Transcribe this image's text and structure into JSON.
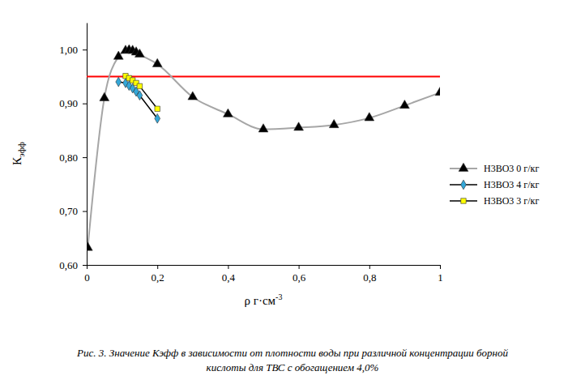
{
  "chart_data": {
    "type": "line",
    "xlabel": [
      "ρ г·см",
      "-3"
    ],
    "ylabel": [
      "К",
      "эфф"
    ],
    "caption": [
      "Рис. 3. Значение Кэфф в зависимости от плотности воды при различной концентрации борной",
      "кислоты для ТВС с обогащением 4,0%"
    ],
    "xlim": [
      0,
      1
    ],
    "xticks": [
      0,
      {
        "value": 0.2,
        "label": "0,2"
      },
      {
        "value": 0.4,
        "label": "0,4"
      },
      {
        "value": 0.6,
        "label": "0,6"
      },
      {
        "value": 0.8,
        "label": "0,8"
      },
      1
    ],
    "ylim": [
      0.6,
      1.05
    ],
    "yticks": [
      {
        "value": 0.6,
        "label": "0,60"
      },
      {
        "value": 0.7,
        "label": "0,70"
      },
      {
        "value": 0.8,
        "label": "0,80"
      },
      {
        "value": 0.9,
        "label": "0,90"
      },
      {
        "value": 1.0,
        "label": "1,00"
      }
    ],
    "grid": false,
    "legend": "right",
    "reference_line": {
      "value": 0.95,
      "color": "#ff0000"
    },
    "series": [
      {
        "name": "H3BO3 0 г/кг",
        "color": "#000000",
        "marker": "triangle",
        "line_style": "smooth",
        "x": [
          0.003,
          0.05,
          0.09,
          0.11,
          0.12,
          0.13,
          0.14,
          0.15,
          0.2,
          0.3,
          0.4,
          0.5,
          0.6,
          0.7,
          0.8,
          0.9,
          1.0
        ],
        "values": [
          0.632,
          0.91,
          0.987,
          0.998,
          0.999,
          0.998,
          0.995,
          0.991,
          0.973,
          0.912,
          0.88,
          0.852,
          0.855,
          0.86,
          0.873,
          0.896,
          0.92
        ]
      },
      {
        "name": "H3BO3 4 г/кг",
        "color": "#33a7d8",
        "marker": "diamond",
        "line_style": "solid",
        "x": [
          0.09,
          0.11,
          0.12,
          0.13,
          0.14,
          0.15,
          0.2
        ],
        "values": [
          0.94,
          0.938,
          0.933,
          0.928,
          0.922,
          0.915,
          0.872
        ]
      },
      {
        "name": "H3BO3 3 г/кг",
        "color": "#ffff00",
        "marker": "square",
        "line_style": "solid",
        "x": [
          0.11,
          0.12,
          0.13,
          0.14,
          0.15,
          0.2
        ],
        "values": [
          0.951,
          0.947,
          0.943,
          0.938,
          0.932,
          0.89
        ]
      }
    ]
  }
}
